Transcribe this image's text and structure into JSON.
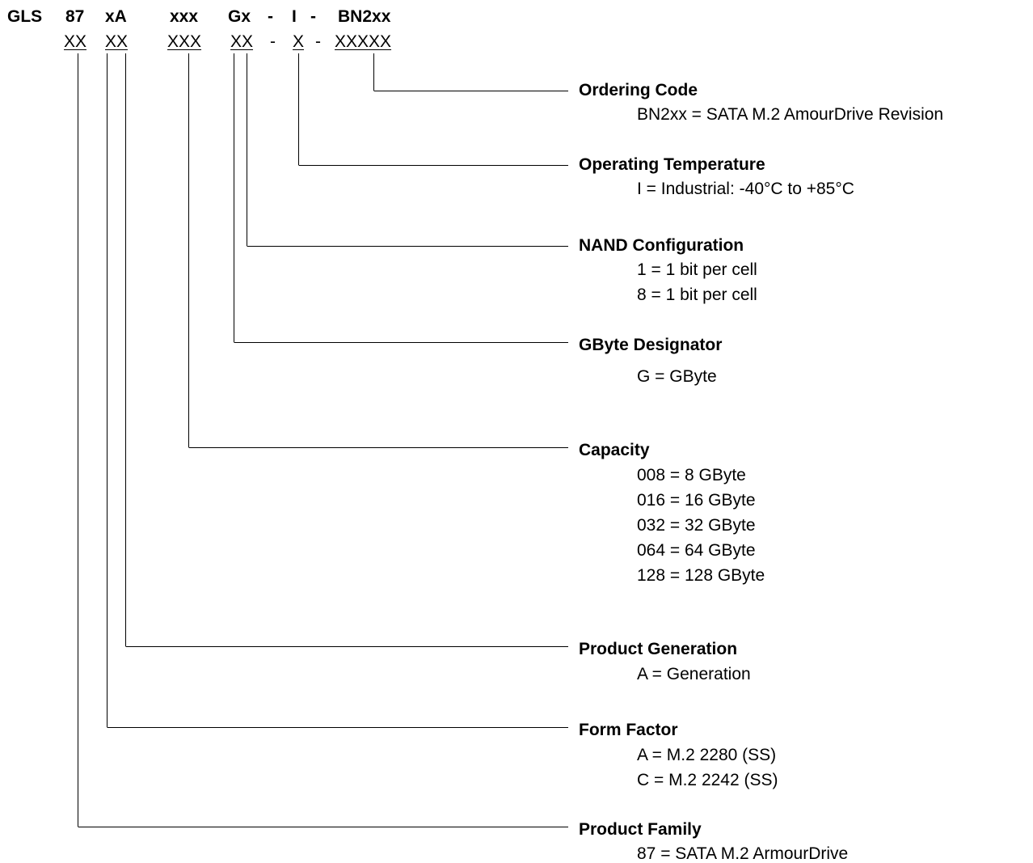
{
  "part_number": {
    "fields": [
      "GLS",
      "87",
      "xA",
      "xxx",
      "Gx",
      "-",
      "I",
      "-",
      "BN2xx"
    ],
    "format": [
      "XX",
      "XX",
      "XXX",
      "XX",
      "-",
      "X",
      "-",
      "XXXXX"
    ]
  },
  "legend": [
    {
      "title": "Ordering Code",
      "options": [
        "BN2xx = SATA M.2 AmourDrive Revision"
      ]
    },
    {
      "title": "Operating Temperature",
      "options": [
        "I = Industrial: -40°C to +85°C"
      ]
    },
    {
      "title": "NAND Configuration",
      "options": [
        "1 = 1 bit per cell",
        "8 = 1 bit per cell"
      ]
    },
    {
      "title": "GByte Designator",
      "options": [
        "G = GByte"
      ]
    },
    {
      "title": "Capacity",
      "options": [
        "008 = 8 GByte",
        "016 = 16 GByte",
        "032 = 32 GByte",
        "064 = 64 GByte",
        "128 = 128 GByte"
      ]
    },
    {
      "title": "Product Generation",
      "options": [
        "A = Generation"
      ]
    },
    {
      "title": "Form Factor",
      "options": [
        "A = M.2 2280 (SS)",
        "C = M.2 2242 (SS)"
      ]
    },
    {
      "title": "Product Family",
      "options": [
        "87 = SATA M.2 ArmourDrive"
      ]
    }
  ]
}
